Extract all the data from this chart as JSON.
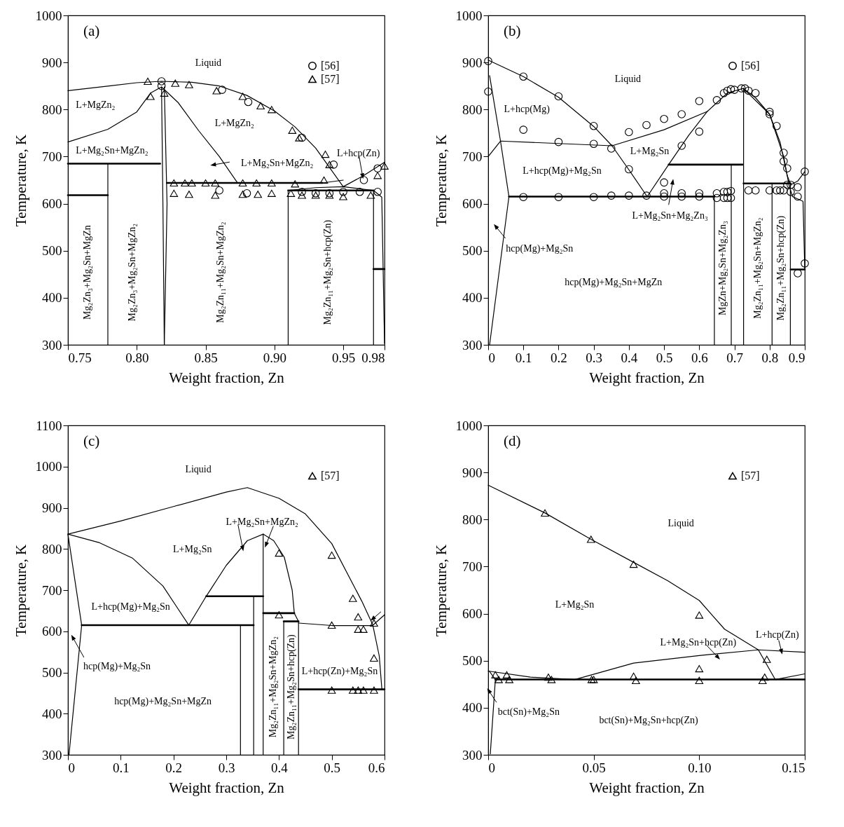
{
  "chart_data": [
    {
      "type": "line",
      "xlabel": "Weight fraction, Zn",
      "ylabel": "Temperature, K",
      "xlim": [
        0.75,
        0.98
      ],
      "ylim": [
        300,
        1000
      ],
      "xticks": [
        0.75,
        {
          "value": 0.8,
          "label": "0.80"
        },
        0.85,
        {
          "value": 0.9,
          "label": "0.90"
        },
        0.95,
        0.98
      ],
      "yticks": [
        300,
        400,
        500,
        600,
        700,
        800,
        900,
        1000
      ],
      "grid": false,
      "legend": "top right",
      "series": [
        {
          "type": "line",
          "color": "#000000",
          "x": [
            0.75,
            0.78,
            0.8,
            0.818,
            0.84,
            0.86,
            0.88,
            0.9,
            0.915,
            0.93,
            0.94,
            0.95,
            0.965,
            0.98
          ],
          "values": [
            840,
            850,
            857,
            860,
            858,
            850,
            830,
            797,
            763,
            718,
            677,
            636,
            660,
            688
          ]
        },
        {
          "type": "line",
          "color": "#000000",
          "x": [
            0.75,
            0.779,
            0.8,
            0.81,
            0.818,
            0.83,
            0.845,
            0.86,
            0.873
          ],
          "values": [
            731,
            758,
            795,
            835,
            848,
            815,
            755,
            700,
            645
          ]
        },
        {
          "type": "line",
          "color": "#000000",
          "x": [
            0.818,
            0.819,
            0.82
          ],
          "values": [
            848,
            600,
            300
          ]
        },
        {
          "type": "line",
          "color": "#000000",
          "x": [
            0.82,
            0.822,
            0.82
          ],
          "values": [
            848,
            600,
            300
          ]
        },
        {
          "type": "line",
          "color": "#000000",
          "x": [
            0.75,
            0.817
          ],
          "values": [
            685,
            685
          ]
        },
        {
          "type": "line",
          "color": "#000000",
          "x": [
            0.75,
            0.779
          ],
          "values": [
            618,
            618
          ]
        },
        {
          "type": "line",
          "color": "#000000",
          "x": [
            0.779,
            0.779
          ],
          "values": [
            300,
            685
          ]
        },
        {
          "type": "line",
          "color": "#000000",
          "x": [
            0.822,
            0.935
          ],
          "values": [
            644,
            644
          ]
        },
        {
          "type": "line",
          "color": "#000000",
          "x": [
            0.935,
            0.95
          ],
          "values": [
            644,
            650
          ]
        },
        {
          "type": "line",
          "color": "#000000",
          "x": [
            0.91,
            0.972
          ],
          "values": [
            628,
            628
          ]
        },
        {
          "type": "line",
          "color": "#000000",
          "x": [
            0.91,
            0.91
          ],
          "values": [
            300,
            628
          ]
        },
        {
          "type": "line",
          "color": "#000000",
          "x": [
            0.972,
            0.972
          ],
          "values": [
            300,
            628
          ]
        },
        {
          "type": "line",
          "color": "#000000",
          "x": [
            0.972,
            0.98
          ],
          "values": [
            461,
            461
          ]
        },
        {
          "type": "line",
          "color": "#000000",
          "x": [
            0.91,
            0.93,
            0.95,
            0.972,
            0.978,
            0.98
          ],
          "values": [
            628,
            634,
            636,
            628,
            614,
            303
          ]
        },
        {
          "type": "scatter",
          "name": "[56]",
          "color": "#000000",
          "marker": "circle",
          "x": [
            0.818,
            0.818,
            0.862,
            0.881,
            0.92,
            0.943,
            0.86,
            0.88,
            0.92,
            0.93,
            0.94,
            0.95,
            0.962,
            0.975,
            0.965,
            0.975
          ],
          "values": [
            860,
            850,
            842,
            816,
            740,
            683,
            628,
            622,
            625,
            622,
            622,
            625,
            625,
            625,
            650,
            675
          ]
        },
        {
          "type": "scatter",
          "name": "[57]",
          "color": "#000000",
          "marker": "triangle",
          "x": [
            0.808,
            0.81,
            0.82,
            0.828,
            0.838,
            0.858,
            0.877,
            0.89,
            0.898,
            0.913,
            0.918,
            0.937,
            0.94,
            0.827,
            0.835,
            0.84,
            0.85,
            0.857,
            0.877,
            0.887,
            0.898,
            0.915,
            0.936,
            0.827,
            0.838,
            0.857,
            0.877,
            0.888,
            0.898,
            0.912,
            0.92,
            0.93,
            0.94,
            0.95,
            0.97,
            0.975,
            0.98
          ],
          "values": [
            860,
            828,
            835,
            856,
            853,
            840,
            828,
            808,
            800,
            756,
            740,
            705,
            683,
            644,
            644,
            644,
            644,
            644,
            644,
            644,
            644,
            642,
            650,
            622,
            620,
            618,
            620,
            620,
            622,
            622,
            618,
            618,
            618,
            615,
            618,
            660,
            680
          ]
        }
      ],
      "annotations": [
        "(a)",
        "Liquid",
        "L+MgZn₂",
        "L+MgZn₂",
        "L+Mg₂Sn+MgZn₂",
        "L+Mg₂Sn+MgZn₂",
        "L+hcp(Zn)",
        "Mg₂Zn₃+Mg₂Sn+MgZn",
        "Mg₂Zn₃+Mg₂Sn+MgZn₂",
        "Mg₂Zn₁₁+Mg₂Sn+MgZn₂",
        "Mg₂Zn₁₁+Mg₂Sn+hcp(Zn)"
      ]
    },
    {
      "type": "line",
      "xlabel": "Weight fraction, Zn",
      "ylabel": "Temperature, K",
      "xlim": [
        0,
        0.9
      ],
      "ylim": [
        300,
        1000
      ],
      "xticks": [
        0,
        0.1,
        0.2,
        0.3,
        0.4,
        0.5,
        0.6,
        0.7,
        0.8,
        0.9
      ],
      "yticks": [
        300,
        400,
        500,
        600,
        700,
        800,
        900,
        1000
      ],
      "grid": false,
      "legend": "top right",
      "series": [
        {
          "type": "line",
          "color": "#000000",
          "x": [
            0,
            0.1,
            0.2,
            0.3,
            0.352,
            0.4,
            0.452,
            0.513,
            0.57,
            0.623,
            0.68,
            0.725
          ],
          "values": [
            905,
            870,
            826,
            764,
            723,
            672,
            615,
            683,
            745,
            796,
            835,
            845
          ]
        },
        {
          "type": "line",
          "color": "#000000",
          "x": [
            0.725,
            0.76,
            0.8,
            0.83,
            0.85,
            0.86
          ],
          "values": [
            845,
            825,
            790,
            730,
            660,
            640
          ]
        },
        {
          "type": "line",
          "color": "#000000",
          "x": [
            0.725,
            0.8,
            0.84,
            0.855,
            0.865
          ],
          "values": [
            845,
            790,
            700,
            640,
            615
          ]
        },
        {
          "type": "line",
          "color": "#000000",
          "x": [
            0.86,
            0.88,
            0.9
          ],
          "values": [
            640,
            648,
            668
          ]
        },
        {
          "type": "line",
          "color": "#000000",
          "x": [
            0,
            0.035,
            0.352,
            0.5,
            0.623
          ],
          "values": [
            700,
            733,
            723,
            757,
            796
          ]
        },
        {
          "type": "line",
          "color": "#000000",
          "x": [
            0.004,
            0.035,
            0.059,
            0.004
          ],
          "values": [
            872,
            733,
            615,
            300
          ]
        },
        {
          "type": "line",
          "color": "#000000",
          "x": [
            0.059,
            0.643
          ],
          "values": [
            615,
            615
          ]
        },
        {
          "type": "line",
          "color": "#000000",
          "x": [
            0.513,
            0.723
          ],
          "values": [
            683,
            683
          ]
        },
        {
          "type": "line",
          "color": "#000000",
          "x": [
            0.643,
            0.643
          ],
          "values": [
            300,
            615
          ]
        },
        {
          "type": "line",
          "color": "#000000",
          "x": [
            0.691,
            0.691
          ],
          "values": [
            300,
            683
          ]
        },
        {
          "type": "line",
          "color": "#000000",
          "x": [
            0.726,
            0.726
          ],
          "values": [
            300,
            845
          ]
        },
        {
          "type": "line",
          "color": "#000000",
          "x": [
            0.726,
            0.86
          ],
          "values": [
            643,
            643
          ]
        },
        {
          "type": "line",
          "color": "#000000",
          "x": [
            0.807,
            0.807
          ],
          "values": [
            300,
            643
          ]
        },
        {
          "type": "line",
          "color": "#000000",
          "x": [
            0.859,
            0.859
          ],
          "values": [
            300,
            643
          ]
        },
        {
          "type": "line",
          "color": "#000000",
          "x": [
            0.86,
            0.9
          ],
          "values": [
            460,
            460
          ]
        },
        {
          "type": "line",
          "color": "#000000",
          "x": [
            0.865,
            0.895,
            0.9
          ],
          "values": [
            615,
            605,
            460
          ]
        },
        {
          "type": "scatter",
          "name": "[56]",
          "color": "#000000",
          "marker": "circle",
          "x": [
            0,
            0,
            0.1,
            0.1,
            0.2,
            0.2,
            0.3,
            0.3,
            0.35,
            0.4,
            0.4,
            0.45,
            0.5,
            0.55,
            0.6,
            0.5,
            0.55,
            0.6,
            0.65,
            0.67,
            0.68,
            0.69,
            0.7,
            0.72,
            0.73,
            0.74,
            0.76,
            0.8,
            0.8,
            0.82,
            0.84,
            0.84,
            0.85,
            0.85,
            0.86,
            0.88,
            0.9,
            0.88,
            0.9,
            0.88,
            0.1,
            0.2,
            0.3,
            0.35,
            0.4,
            0.45,
            0.5,
            0.5,
            0.55,
            0.55,
            0.6,
            0.6,
            0.65,
            0.65,
            0.67,
            0.67,
            0.68,
            0.68,
            0.69,
            0.69,
            0.74,
            0.76,
            0.8,
            0.82,
            0.83,
            0.84,
            0.86
          ],
          "values": [
            903,
            838,
            870,
            757,
            828,
            731,
            765,
            727,
            717,
            673,
            752,
            767,
            780,
            790,
            818,
            645,
            723,
            753,
            820,
            835,
            840,
            843,
            842,
            845,
            845,
            840,
            835,
            795,
            790,
            765,
            708,
            690,
            675,
            640,
            640,
            635,
            668,
            615,
            473,
            452,
            614,
            614,
            614,
            617,
            617,
            617,
            622,
            615,
            622,
            615,
            622,
            615,
            622,
            612,
            625,
            612,
            625,
            612,
            627,
            612,
            628,
            628,
            628,
            628,
            628,
            628,
            625
          ]
        }
      ],
      "annotations": [
        "(b)",
        "Liquid",
        "L+hcp(Mg)",
        "L+Mg₂Sn",
        "L+hcp(Mg)+Mg₂Sn",
        "L+Mg₂Sn+Mg₂Zn₃",
        "hcp(Mg)+Mg₂Sn",
        "hcp(Mg)+Mg₂Sn+MgZn",
        "MgZn+Mg₂Sn+Mg₂Zn₃",
        "Mg₂Zn₁₁+Mg₂Sn+MgZn₂",
        "Mg₂Zn₁₁+Mg₂Sn+hcp(Zn)"
      ]
    },
    {
      "type": "line",
      "xlabel": "Weight fraction, Zn",
      "ylabel": "Temperature, K",
      "xlim": [
        0,
        0.6
      ],
      "ylim": [
        300,
        1100
      ],
      "xticks": [
        0,
        0.1,
        0.2,
        0.3,
        0.4,
        0.5,
        0.6
      ],
      "yticks": [
        300,
        400,
        500,
        600,
        700,
        800,
        900,
        1000,
        1100
      ],
      "grid": false,
      "legend": "top right",
      "series": [
        {
          "type": "line",
          "color": "#000000",
          "x": [
            0,
            0.1,
            0.2,
            0.3,
            0.34,
            0.4,
            0.45,
            0.5,
            0.557,
            0.578
          ],
          "values": [
            836,
            868,
            903,
            938,
            949,
            923,
            885,
            813,
            673,
            615
          ]
        },
        {
          "type": "line",
          "color": "#000000",
          "x": [
            0,
            0.06,
            0.122,
            0.18,
            0.229,
            0.262,
            0.3,
            0.34,
            0.37
          ],
          "values": [
            836,
            815,
            778,
            710,
            615,
            685,
            760,
            820,
            836
          ]
        },
        {
          "type": "line",
          "color": "#000000",
          "x": [
            0,
            0.026,
            0.002
          ],
          "values": [
            836,
            615,
            300
          ]
        },
        {
          "type": "line",
          "color": "#000000",
          "x": [
            0.37,
            0.37,
            0.39,
            0.41,
            0.425,
            0.429,
            0.437
          ],
          "values": [
            300,
            836,
            820,
            780,
            700,
            644,
            624
          ]
        },
        {
          "type": "line",
          "color": "#000000",
          "x": [
            0.026,
            0.352
          ],
          "values": [
            615,
            615
          ]
        },
        {
          "type": "line",
          "color": "#000000",
          "x": [
            0.262,
            0.37
          ],
          "values": [
            685,
            685
          ]
        },
        {
          "type": "line",
          "color": "#000000",
          "x": [
            0.37,
            0.429
          ],
          "values": [
            644,
            644
          ]
        },
        {
          "type": "line",
          "color": "#000000",
          "x": [
            0.409,
            0.437
          ],
          "values": [
            624,
            624
          ]
        },
        {
          "type": "line",
          "color": "#000000",
          "x": [
            0.437,
            0.6
          ],
          "values": [
            459,
            459
          ]
        },
        {
          "type": "line",
          "color": "#000000",
          "x": [
            0.327,
            0.327
          ],
          "values": [
            300,
            615
          ]
        },
        {
          "type": "line",
          "color": "#000000",
          "x": [
            0.352,
            0.352
          ],
          "values": [
            300,
            685
          ]
        },
        {
          "type": "line",
          "color": "#000000",
          "x": [
            0.409,
            0.409
          ],
          "values": [
            300,
            624
          ]
        },
        {
          "type": "line",
          "color": "#000000",
          "x": [
            0.437,
            0.437
          ],
          "values": [
            300,
            624
          ]
        },
        {
          "type": "line",
          "color": "#000000",
          "x": [
            0.437,
            0.5,
            0.578,
            0.59,
            0.595
          ],
          "values": [
            620,
            614,
            614,
            540,
            459
          ]
        },
        {
          "type": "line",
          "color": "#000000",
          "x": [
            0.578,
            0.6
          ],
          "values": [
            615,
            640
          ]
        },
        {
          "type": "scatter",
          "name": "[57]",
          "color": "#000000",
          "marker": "triangle",
          "x": [
            0.4,
            0.5,
            0.54,
            0.55,
            0.55,
            0.56,
            0.58,
            0.58,
            0.4,
            0.5,
            0.5,
            0.54,
            0.55,
            0.56,
            0.58
          ],
          "values": [
            790,
            785,
            680,
            635,
            605,
            605,
            620,
            535,
            640,
            615,
            457,
            457,
            457,
            457,
            457
          ]
        }
      ],
      "annotations": [
        "(c)",
        "Liquid",
        "L+Mg₂Sn",
        "L+Mg₂Sn+MgZn₂",
        "L+hcp(Mg)+Mg₂Sn",
        "hcp(Mg)+Mg₂Sn",
        "hcp(Mg)+Mg₂Sn+MgZn",
        "L+hcp(Zn)+Mg₂Sn",
        "Mg₂Zn₁₁+Mg₂Sn+MgZn₂",
        "Mg₂Zn₁₁+Mg₂Sn+hcp(Zn)"
      ]
    },
    {
      "type": "line",
      "xlabel": "Weight fraction, Zn",
      "ylabel": "Temperature, K",
      "xlim": [
        0,
        0.15
      ],
      "ylim": [
        300,
        1000
      ],
      "xticks": [
        0,
        0.05,
        {
          "value": 0.1,
          "label": "0.10"
        },
        0.15
      ],
      "yticks": [
        300,
        400,
        500,
        600,
        700,
        800,
        900,
        1000
      ],
      "grid": false,
      "legend": "top right",
      "series": [
        {
          "type": "line",
          "color": "#000000",
          "x": [
            0,
            0.0269,
            0.0487,
            0.0689,
            0.085,
            0.1,
            0.112,
            0.128,
            0.136
          ],
          "values": [
            873,
            814,
            758,
            709,
            670,
            628,
            567,
            523,
            460
          ]
        },
        {
          "type": "line",
          "color": "#000000",
          "x": [
            0,
            0.02,
            0.041,
            0.0689,
            0.1,
            0.128,
            0.15
          ],
          "values": [
            478,
            465,
            460,
            495,
            511,
            523,
            518
          ]
        },
        {
          "type": "line",
          "color": "#000000",
          "x": [
            0.0005,
            0.0034,
            0.001
          ],
          "values": [
            478,
            460,
            302
          ]
        },
        {
          "type": "line",
          "color": "#000000",
          "x": [
            0.0034,
            0.15
          ],
          "values": [
            460,
            460
          ]
        },
        {
          "type": "line",
          "color": "#000000",
          "x": [
            0.136,
            0.15
          ],
          "values": [
            460,
            472
          ]
        },
        {
          "type": "scatter",
          "name": "[57]",
          "color": "#000000",
          "marker": "triangle",
          "x": [
            0.0269,
            0.0487,
            0.0689,
            0.1,
            0.1,
            0.132,
            0.131,
            0.0689,
            0.0034,
            0.0088,
            0.0285,
            0.005,
            0.01,
            0.03,
            0.049,
            0.05,
            0.07,
            0.1,
            0.13
          ],
          "values": [
            814,
            758,
            705,
            597,
            483,
            503,
            465,
            467,
            470,
            470,
            465,
            460,
            460,
            460,
            460,
            460,
            458,
            458,
            458
          ]
        }
      ],
      "annotations": [
        "(d)",
        "Liquid",
        "L+Mg₂Sn",
        "L+Mg₂Sn+hcp(Zn)",
        "L+hcp(Zn)",
        "bct(Sn)+Mg₂Sn",
        "bct(Sn)+Mg₂Sn+hcp(Zn)"
      ]
    }
  ]
}
